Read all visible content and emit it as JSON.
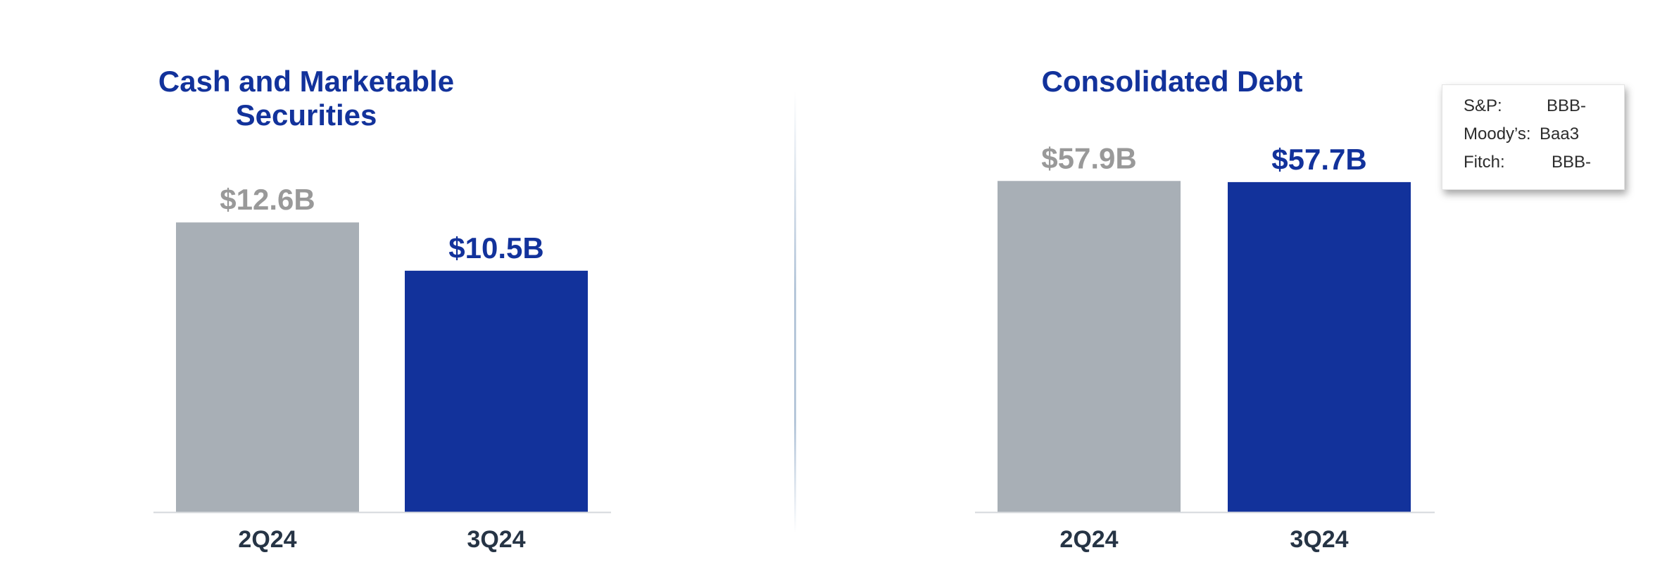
{
  "chart_data": [
    {
      "type": "bar",
      "title": "Cash and Marketable Securities",
      "categories": [
        "2Q24",
        "3Q24"
      ],
      "values": [
        12.6,
        10.5
      ],
      "value_labels": [
        "$12.6B",
        "$10.5B"
      ],
      "unit": "$B",
      "ylim": [
        0,
        15.3
      ],
      "colors": [
        "#a8afb6",
        "#12329b"
      ],
      "label_colors": [
        "#999999",
        "#12329b"
      ],
      "xlabel": "",
      "ylabel": "",
      "grid": false
    },
    {
      "type": "bar",
      "title": "Consolidated Debt",
      "categories": [
        "2Q24",
        "3Q24"
      ],
      "values": [
        57.9,
        57.7
      ],
      "value_labels": [
        "$57.9B",
        "$57.7B"
      ],
      "unit": "$B",
      "ylim": [
        0,
        61.5
      ],
      "colors": [
        "#a8afb6",
        "#12329b"
      ],
      "label_colors": [
        "#999999",
        "#12329b"
      ],
      "xlabel": "",
      "ylabel": "",
      "grid": false
    }
  ],
  "ratings": {
    "items": [
      {
        "agency": "S&P:",
        "rating": "BBB-"
      },
      {
        "agency": "Moody’s:",
        "rating": "Baa3"
      },
      {
        "agency": "Fitch:",
        "rating": "BBB-"
      }
    ]
  }
}
